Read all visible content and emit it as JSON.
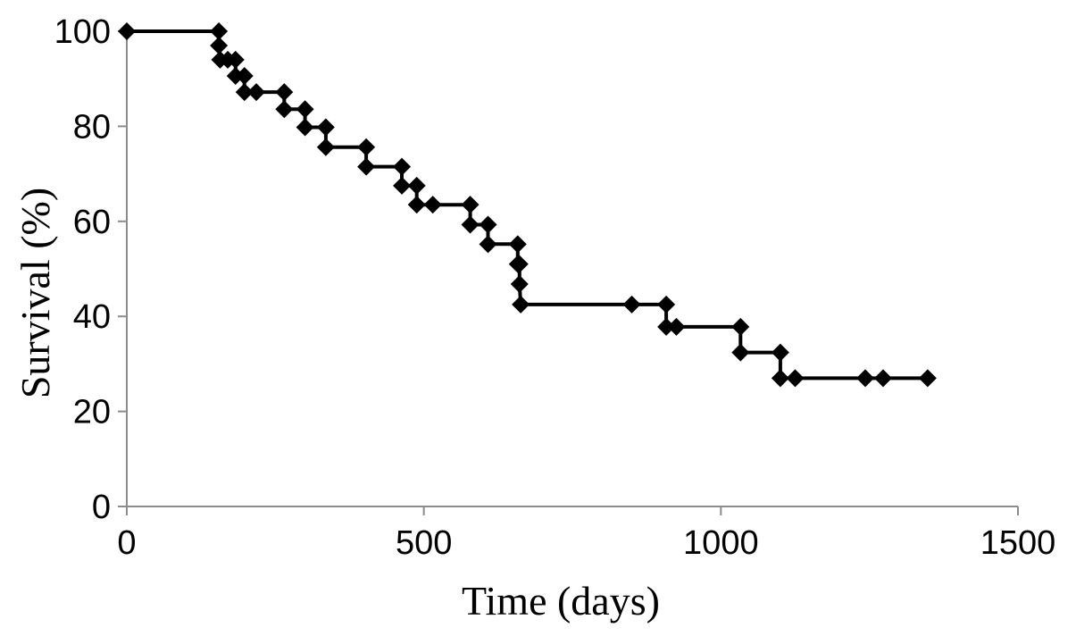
{
  "chart_data": {
    "type": "line",
    "xlabel": "Time (days)",
    "ylabel": "Survival (%)",
    "xlim": [
      0,
      1500
    ],
    "ylim": [
      0,
      100
    ],
    "x_ticks": [
      0,
      500,
      1000,
      1500
    ],
    "y_ticks": [
      0,
      20,
      40,
      60,
      80,
      100
    ],
    "grid": false,
    "line_style": "step",
    "series": [
      {
        "color": "#000000",
        "marker": "diamond",
        "points": [
          [
            0,
            100
          ],
          [
            155,
            100
          ],
          [
            155,
            97
          ],
          [
            157,
            94
          ],
          [
            170,
            94
          ],
          [
            183,
            94
          ],
          [
            183,
            90.6
          ],
          [
            198,
            90.6
          ],
          [
            198,
            87.2
          ],
          [
            218,
            87.2
          ],
          [
            265,
            87.2
          ],
          [
            265,
            83.6
          ],
          [
            300,
            83.6
          ],
          [
            300,
            79.8
          ],
          [
            335,
            79.8
          ],
          [
            335,
            75.6
          ],
          [
            403,
            75.6
          ],
          [
            403,
            71.5
          ],
          [
            463,
            71.5
          ],
          [
            463,
            67.5
          ],
          [
            488,
            67.5
          ],
          [
            488,
            63.5
          ],
          [
            515,
            63.5
          ],
          [
            578,
            63.5
          ],
          [
            578,
            59.3
          ],
          [
            608,
            59.3
          ],
          [
            608,
            55.2
          ],
          [
            658,
            55.2
          ],
          [
            658,
            51
          ],
          [
            661,
            51
          ],
          [
            661,
            46.8
          ],
          [
            663,
            42.5
          ],
          [
            850,
            42.5
          ],
          [
            908,
            42.5
          ],
          [
            908,
            37.8
          ],
          [
            925,
            37.8
          ],
          [
            1033,
            37.8
          ],
          [
            1033,
            32.4
          ],
          [
            1100,
            32.4
          ],
          [
            1100,
            27
          ],
          [
            1125,
            27
          ],
          [
            1243,
            27
          ],
          [
            1273,
            27
          ],
          [
            1348,
            27
          ]
        ]
      }
    ]
  }
}
